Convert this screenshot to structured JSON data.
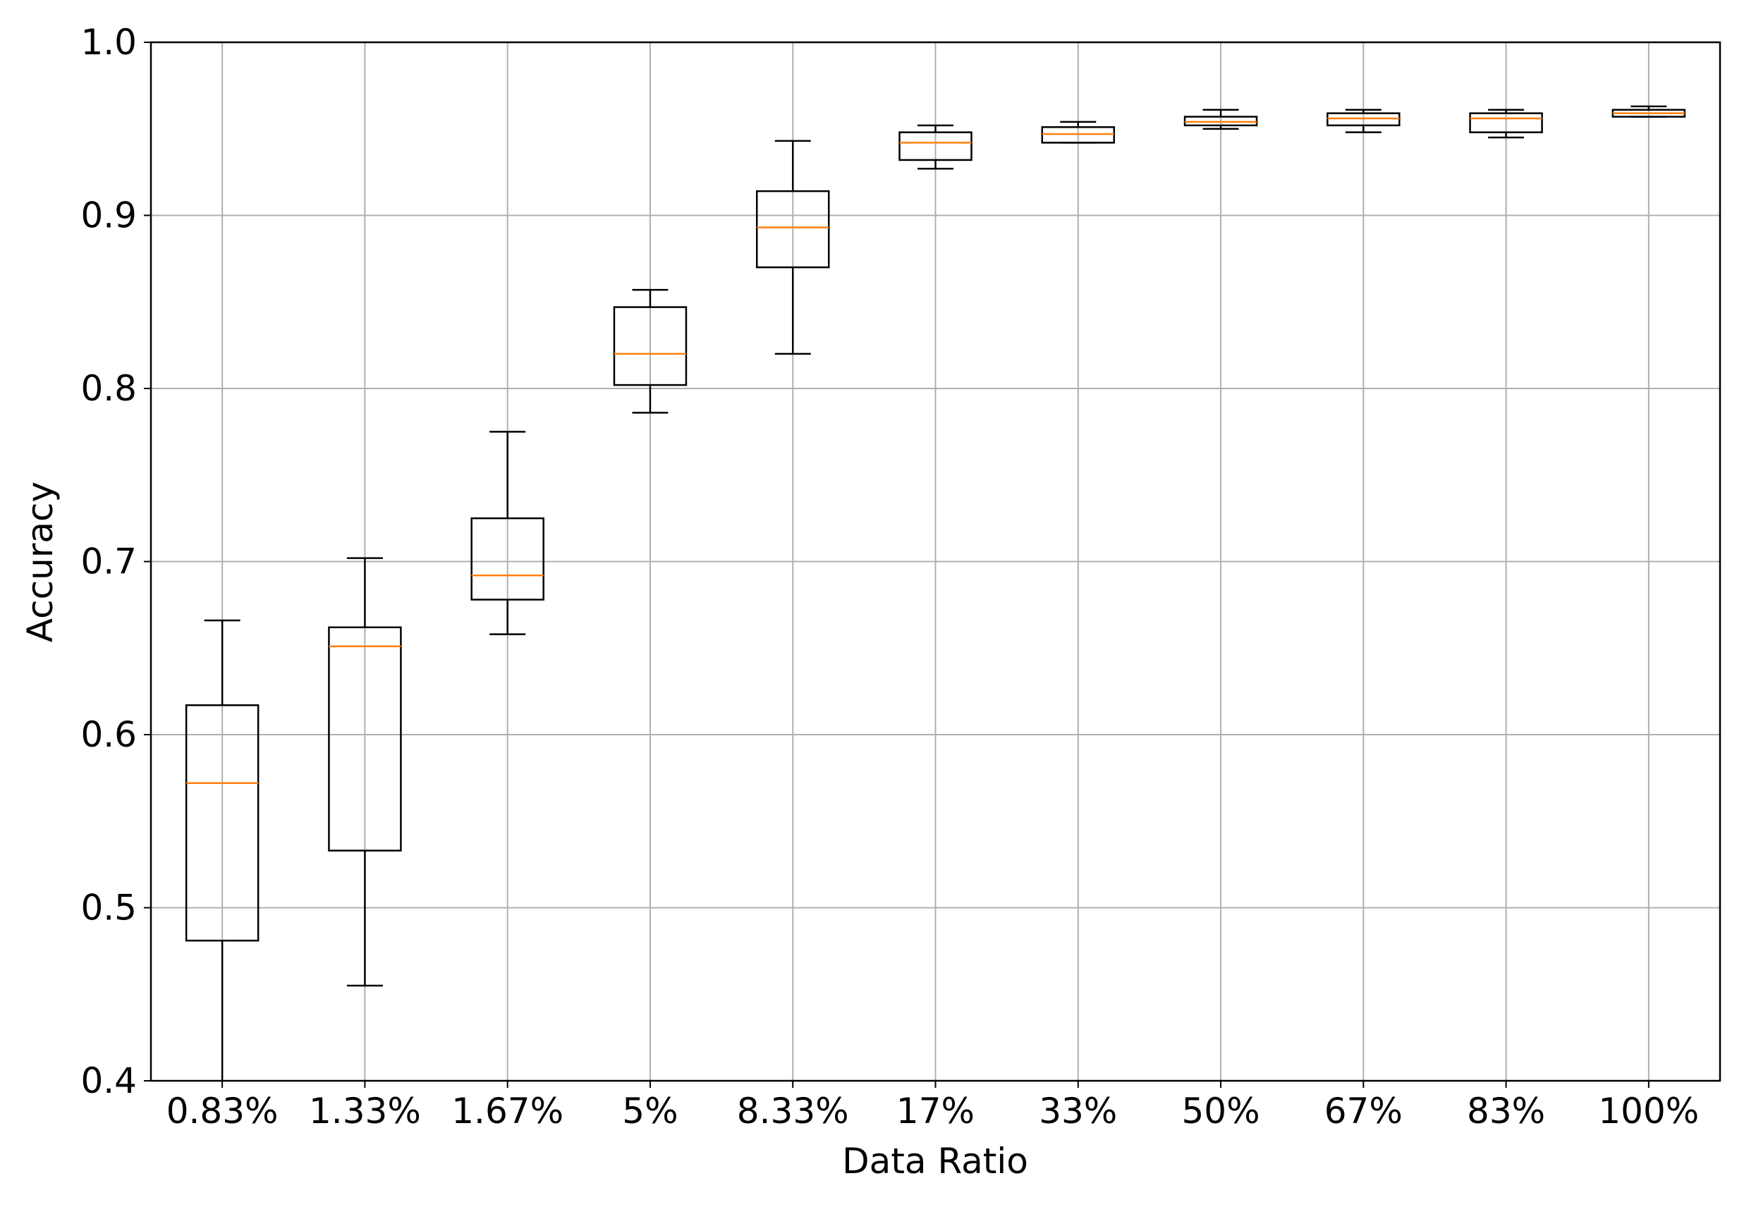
{
  "chart_data": {
    "type": "box",
    "title": "",
    "xlabel": "Data Ratio",
    "ylabel": "Accuracy",
    "ylim": [
      0.4,
      1.0
    ],
    "yticks": [
      0.4,
      0.5,
      0.6,
      0.7,
      0.8,
      0.9,
      1.0
    ],
    "ytick_labels": [
      "0.4",
      "0.5",
      "0.6",
      "0.7",
      "0.8",
      "0.9",
      "1.0"
    ],
    "grid": true,
    "categories": [
      "0.83%",
      "1.33%",
      "1.67%",
      "5%",
      "8.33%",
      "17%",
      "33%",
      "50%",
      "67%",
      "83%",
      "100%"
    ],
    "boxes": [
      {
        "whisker_low": 0.4,
        "q1": 0.481,
        "median": 0.572,
        "q3": 0.617,
        "whisker_high": 0.666
      },
      {
        "whisker_low": 0.455,
        "q1": 0.533,
        "median": 0.651,
        "q3": 0.662,
        "whisker_high": 0.702
      },
      {
        "whisker_low": 0.658,
        "q1": 0.678,
        "median": 0.692,
        "q3": 0.725,
        "whisker_high": 0.775
      },
      {
        "whisker_low": 0.786,
        "q1": 0.802,
        "median": 0.82,
        "q3": 0.847,
        "whisker_high": 0.857
      },
      {
        "whisker_low": 0.82,
        "q1": 0.87,
        "median": 0.893,
        "q3": 0.914,
        "whisker_high": 0.943
      },
      {
        "whisker_low": 0.927,
        "q1": 0.932,
        "median": 0.942,
        "q3": 0.948,
        "whisker_high": 0.952
      },
      {
        "whisker_low": 0.942,
        "q1": 0.942,
        "median": 0.947,
        "q3": 0.951,
        "whisker_high": 0.954
      },
      {
        "whisker_low": 0.95,
        "q1": 0.952,
        "median": 0.954,
        "q3": 0.957,
        "whisker_high": 0.961
      },
      {
        "whisker_low": 0.948,
        "q1": 0.952,
        "median": 0.956,
        "q3": 0.959,
        "whisker_high": 0.961
      },
      {
        "whisker_low": 0.945,
        "q1": 0.948,
        "median": 0.956,
        "q3": 0.959,
        "whisker_high": 0.961
      },
      {
        "whisker_low": 0.957,
        "q1": 0.957,
        "median": 0.959,
        "q3": 0.961,
        "whisker_high": 0.963
      }
    ],
    "colors": {
      "box": "#000000",
      "median": "#ff7f0e",
      "grid": "#b0b0b0",
      "axes": "#000000"
    }
  }
}
